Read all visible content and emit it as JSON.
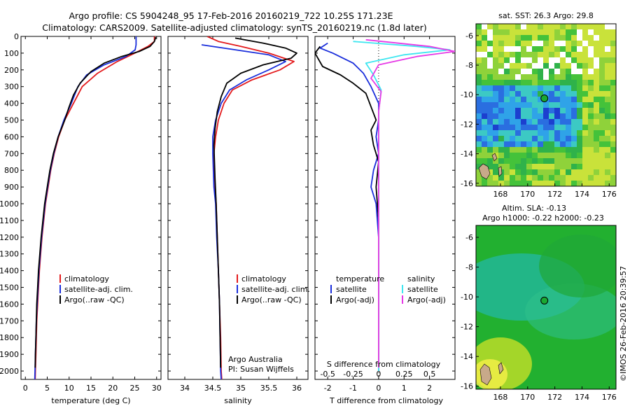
{
  "header": {
    "title_line1": "Argo profile: CS 5904248_95 17-Feb-2016 20160219_722 10.25S 171.23E",
    "title_line2": "Climatology: CARS2009. Satellite-adjusted climatology: synTS_20160219.nc (1.8d later)"
  },
  "colors": {
    "climatology": "#e31a1c",
    "satellite": "#1a2edb",
    "argo": "#000000",
    "satellite_salinity": "#3ee6f0",
    "argo_salinity_adj": "#e639e6"
  },
  "chart_data": [
    {
      "type": "line",
      "panel": "temperature",
      "xlabel": "temperature (deg C)",
      "xlim": [
        -1,
        31
      ],
      "xticks": [
        0,
        5,
        10,
        15,
        20,
        25,
        30
      ],
      "ylim": [
        2050,
        0
      ],
      "yticks": [
        0,
        100,
        200,
        300,
        400,
        500,
        600,
        700,
        800,
        900,
        1000,
        1100,
        1200,
        1300,
        1400,
        1500,
        1600,
        1700,
        1800,
        1900,
        2000
      ],
      "legend": [
        "climatology",
        "satellite-adj. clim.",
        "Argo(..raw -QC)"
      ],
      "series": [
        {
          "name": "climatology",
          "color": "climatology",
          "points": [
            [
              29.5,
              0
            ],
            [
              29.5,
              30
            ],
            [
              28,
              60
            ],
            [
              25,
              100
            ],
            [
              21,
              150
            ],
            [
              16.5,
              220
            ],
            [
              13,
              300
            ],
            [
              11,
              400
            ],
            [
              9,
              500
            ],
            [
              7.6,
              600
            ],
            [
              6.6,
              700
            ],
            [
              5.8,
              800
            ],
            [
              5.2,
              900
            ],
            [
              4.6,
              1000
            ],
            [
              4.2,
              1100
            ],
            [
              3.8,
              1200
            ],
            [
              3.5,
              1300
            ],
            [
              3.2,
              1400
            ],
            [
              3,
              1500
            ],
            [
              2.8,
              1600
            ],
            [
              2.6,
              1700
            ],
            [
              2.5,
              1800
            ],
            [
              2.4,
              1900
            ],
            [
              2.3,
              2000
            ],
            [
              2.25,
              2050
            ]
          ]
        },
        {
          "name": "satellite-adj. clim.",
          "color": "satellite",
          "points": [
            [
              25.3,
              0
            ],
            [
              25.3,
              50
            ],
            [
              25.1,
              80
            ],
            [
              23,
              120
            ],
            [
              18,
              170
            ],
            [
              14,
              230
            ],
            [
              12,
              300
            ],
            [
              10.5,
              400
            ],
            [
              8.8,
              500
            ],
            [
              7.5,
              600
            ],
            [
              6.5,
              700
            ],
            [
              5.7,
              800
            ],
            [
              5.1,
              900
            ],
            [
              4.5,
              1000
            ],
            [
              4.1,
              1100
            ],
            [
              3.7,
              1200
            ],
            [
              3.4,
              1300
            ],
            [
              3.1,
              1400
            ],
            [
              2.9,
              1500
            ],
            [
              2.7,
              1600
            ],
            [
              2.5,
              1700
            ],
            [
              2.4,
              1800
            ],
            [
              2.3,
              1900
            ],
            [
              2.2,
              2000
            ],
            [
              2.15,
              2050
            ]
          ]
        },
        {
          "name": "Argo(..raw -QC)",
          "color": "argo",
          "points": [
            [
              29.8,
              5
            ],
            [
              29.5,
              30
            ],
            [
              28.5,
              60
            ],
            [
              26,
              90
            ],
            [
              22,
              120
            ],
            [
              18,
              160
            ],
            [
              15,
              210
            ],
            [
              12.5,
              280
            ],
            [
              11,
              350
            ],
            [
              10,
              420
            ],
            [
              9,
              500
            ],
            [
              7.5,
              600
            ],
            [
              6.4,
              700
            ],
            [
              5.6,
              800
            ],
            [
              5,
              900
            ],
            [
              4.4,
              1000
            ],
            [
              4,
              1100
            ],
            [
              3.6,
              1200
            ],
            [
              3.3,
              1300
            ],
            [
              3,
              1400
            ],
            [
              2.8,
              1500
            ],
            [
              2.6,
              1600
            ],
            [
              2.5,
              1700
            ],
            [
              2.4,
              1800
            ],
            [
              2.3,
              1900
            ],
            [
              2.25,
              1980
            ]
          ]
        }
      ]
    },
    {
      "type": "line",
      "panel": "salinity",
      "xlabel": "salinity",
      "xlim": [
        33.7,
        36.2
      ],
      "xticks": [
        34,
        34.5,
        35,
        35.5,
        36
      ],
      "ylim": [
        2050,
        0
      ],
      "legend": [
        "climatology",
        "satellite-adj. clim.",
        "Argo(..raw -QC)"
      ],
      "annotations": [
        "Argo Australia",
        "PI: Susan Wijffels"
      ],
      "series": [
        {
          "name": "climatology",
          "color": "climatology",
          "points": [
            [
              34.4,
              0
            ],
            [
              34.6,
              30
            ],
            [
              35,
              60
            ],
            [
              35.5,
              100
            ],
            [
              35.95,
              150
            ],
            [
              35.7,
              200
            ],
            [
              35.2,
              260
            ],
            [
              34.85,
              320
            ],
            [
              34.7,
              400
            ],
            [
              34.6,
              500
            ],
            [
              34.55,
              600
            ],
            [
              34.52,
              700
            ],
            [
              34.53,
              800
            ],
            [
              34.54,
              900
            ],
            [
              34.56,
              1000
            ],
            [
              34.58,
              1200
            ],
            [
              34.6,
              1400
            ],
            [
              34.62,
              1600
            ],
            [
              34.64,
              1800
            ],
            [
              34.65,
              2000
            ],
            [
              34.66,
              2050
            ]
          ]
        },
        {
          "name": "satellite-adj. clim.",
          "color": "satellite",
          "points": [
            [
              34.3,
              50
            ],
            [
              34.9,
              80
            ],
            [
              35.5,
              110
            ],
            [
              35.8,
              150
            ],
            [
              35.5,
              200
            ],
            [
              35.1,
              260
            ],
            [
              34.8,
              320
            ],
            [
              34.65,
              400
            ],
            [
              34.55,
              500
            ],
            [
              34.5,
              600
            ],
            [
              34.5,
              700
            ],
            [
              34.51,
              800
            ],
            [
              34.52,
              900
            ],
            [
              34.55,
              1000
            ],
            [
              34.57,
              1200
            ],
            [
              34.6,
              1400
            ],
            [
              34.62,
              1600
            ],
            [
              34.63,
              1800
            ],
            [
              34.64,
              2000
            ],
            [
              34.65,
              2050
            ]
          ]
        },
        {
          "name": "Argo(..raw -QC)",
          "color": "argo",
          "points": [
            [
              34.9,
              10
            ],
            [
              35.4,
              40
            ],
            [
              35.8,
              70
            ],
            [
              36.0,
              100
            ],
            [
              35.9,
              130
            ],
            [
              35.4,
              170
            ],
            [
              35.0,
              220
            ],
            [
              34.75,
              280
            ],
            [
              34.65,
              360
            ],
            [
              34.58,
              450
            ],
            [
              34.54,
              550
            ],
            [
              34.52,
              650
            ],
            [
              34.53,
              750
            ],
            [
              34.54,
              850
            ],
            [
              34.56,
              1000
            ],
            [
              34.58,
              1200
            ],
            [
              34.6,
              1400
            ],
            [
              34.62,
              1600
            ],
            [
              34.63,
              1800
            ],
            [
              34.64,
              1980
            ]
          ]
        }
      ]
    },
    {
      "type": "line",
      "panel": "difference",
      "xlabel": "T difference from climatology",
      "xlabel_top": "S difference from climatology",
      "xlim": [
        -2.5,
        3
      ],
      "xticks": [
        -2,
        -1,
        0,
        1,
        2
      ],
      "xticks_top_labels": [
        "-0.5",
        "-0.25",
        "0",
        "0.25",
        "0.5"
      ],
      "ylim": [
        2050,
        0
      ],
      "legend": {
        "temperature_header": "temperature",
        "salinity_header": "salinity",
        "items": [
          "satellite",
          "Argo(-adj)",
          "satellite",
          "Argo(-adj)"
        ]
      },
      "series": [
        {
          "name": "temperature satellite",
          "color": "satellite",
          "points": [
            [
              -2.0,
              40
            ],
            [
              -2.3,
              70
            ],
            [
              -1.8,
              100
            ],
            [
              -1.0,
              160
            ],
            [
              -0.6,
              220
            ],
            [
              -0.3,
              300
            ],
            [
              0,
              400
            ],
            [
              0,
              500
            ],
            [
              -0.1,
              600
            ],
            [
              0,
              700
            ],
            [
              -0.2,
              800
            ],
            [
              -0.3,
              900
            ],
            [
              -0.1,
              1000
            ],
            [
              0,
              1200
            ],
            [
              0,
              1500
            ],
            [
              0,
              2000
            ]
          ]
        },
        {
          "name": "temperature Argo(-adj)",
          "color": "argo",
          "points": [
            [
              -2.3,
              60
            ],
            [
              -2.5,
              100
            ],
            [
              -2.2,
              180
            ],
            [
              -1.5,
              230
            ],
            [
              -1.0,
              280
            ],
            [
              -0.5,
              340
            ],
            [
              -0.3,
              420
            ],
            [
              -0.1,
              500
            ],
            [
              -0.3,
              560
            ],
            [
              -0.2,
              650
            ],
            [
              0,
              750
            ],
            [
              -0.1,
              900
            ],
            [
              0,
              1100
            ],
            [
              0,
              1400
            ],
            [
              0,
              1980
            ]
          ]
        },
        {
          "name": "salinity satellite",
          "color": "satellite_salinity",
          "points": [
            [
              -1.0,
              30
            ],
            [
              1.5,
              60
            ],
            [
              2.8,
              80
            ],
            [
              1.0,
              110
            ],
            [
              -0.5,
              160
            ],
            [
              -0.2,
              230
            ],
            [
              0.1,
              320
            ],
            [
              0,
              450
            ],
            [
              0,
              700
            ],
            [
              0,
              1000
            ],
            [
              0,
              1500
            ],
            [
              0,
              2000
            ]
          ]
        },
        {
          "name": "salinity Argo(-adj)",
          "color": "argo_salinity_adj",
          "points": [
            [
              -0.5,
              20
            ],
            [
              2.0,
              60
            ],
            [
              3.0,
              90
            ],
            [
              1.5,
              120
            ],
            [
              0,
              170
            ],
            [
              -0.3,
              250
            ],
            [
              0.1,
              330
            ],
            [
              0,
              450
            ],
            [
              0,
              700
            ],
            [
              0,
              1000
            ],
            [
              0,
              1500
            ],
            [
              0,
              1980
            ]
          ]
        }
      ]
    },
    {
      "type": "heatmap",
      "panel": "sst_map",
      "title": "sat. SST: 26.3 Argo: 29.8",
      "xlim": [
        166.2,
        176.5
      ],
      "ylim": [
        -16.2,
        -5.2
      ],
      "xticks": [
        168,
        170,
        172,
        174,
        176
      ],
      "yticks": [
        -6,
        -8,
        -10,
        -12,
        -14,
        -16
      ],
      "float_position": [
        171.23,
        -10.25
      ]
    },
    {
      "type": "heatmap",
      "panel": "sla_map",
      "title_line1": "Altim. SLA: -0.13",
      "title_line2": "Argo h1000: -0.22 h2000: -0.23",
      "xlim": [
        166.2,
        176.5
      ],
      "ylim": [
        -16.2,
        -5.2
      ],
      "xticks": [
        168,
        170,
        172,
        174,
        176
      ],
      "yticks": [
        -6,
        -8,
        -10,
        -12,
        -14,
        -16
      ],
      "float_position": [
        171.23,
        -10.25
      ]
    }
  ],
  "footer": {
    "credit": "©IMOS 26-Feb-2016 20:39:57"
  }
}
